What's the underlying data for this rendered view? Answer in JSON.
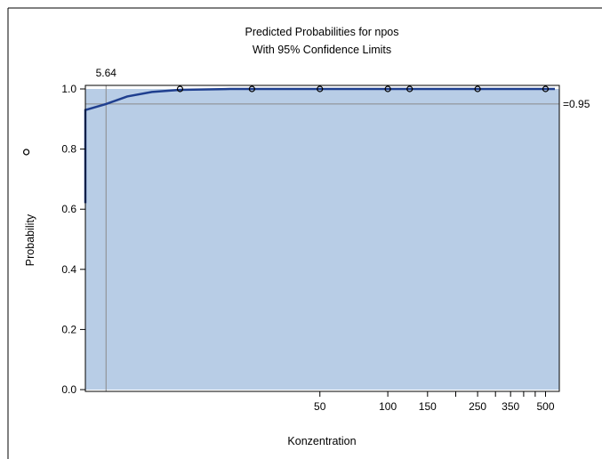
{
  "chart_data": {
    "type": "line",
    "title": "Predicted Probabilities for npos",
    "subtitle": "With 95% Confidence Limits",
    "xlabel": "Konzentration",
    "ylabel": "Probability",
    "x_scale": "log",
    "xlim": [
      2,
      550
    ],
    "ylim": [
      0,
      1
    ],
    "x_ticks": [
      50,
      100,
      150,
      250,
      350,
      500
    ],
    "x_minor_ticks": [
      200,
      300,
      400,
      450
    ],
    "x_tick_labels": [
      "50",
      "100",
      "150",
      "250",
      "350",
      "500"
    ],
    "y_ticks": [
      0.0,
      0.2,
      0.4,
      0.6,
      0.8,
      1.0
    ],
    "y_tick_labels": [
      "0.0",
      "0.2",
      "0.4",
      "0.6",
      "0.8",
      "1.0"
    ],
    "grid": false,
    "series": [
      {
        "values": [
          {
            "x": 2.0,
            "y": 0.62
          },
          {
            "x": 2.3,
            "y": 0.72
          },
          {
            "x": 2.7,
            "y": 0.8
          },
          {
            "x": 3.2,
            "y": 0.86
          },
          {
            "x": 3.8,
            "y": 0.905
          },
          {
            "x": 4.5,
            "y": 0.93
          },
          {
            "x": 5.64,
            "y": 0.95
          },
          {
            "x": 7,
            "y": 0.975
          },
          {
            "x": 9,
            "y": 0.99
          },
          {
            "x": 12,
            "y": 0.997
          },
          {
            "x": 20,
            "y": 1.0
          },
          {
            "x": 550,
            "y": 1.0
          }
        ],
        "color": "#1f3f8f"
      }
    ],
    "observed_points": [
      {
        "x": 2.5,
        "y": 0.79
      },
      {
        "x": 12,
        "y": 1.0
      },
      {
        "x": 25,
        "y": 1.0
      },
      {
        "x": 50,
        "y": 1.0
      },
      {
        "x": 100,
        "y": 1.0
      },
      {
        "x": 125,
        "y": 1.0
      },
      {
        "x": 250,
        "y": 1.0
      },
      {
        "x": 500,
        "y": 1.0
      }
    ],
    "confidence_band": {
      "lower": 0.0,
      "upper": 1.0,
      "color": "#b8cde6"
    },
    "reference_lines": {
      "vertical": {
        "x": 5.64,
        "label": "5.64"
      },
      "horizontal": {
        "y": 0.95,
        "label": "=0.95"
      }
    }
  }
}
